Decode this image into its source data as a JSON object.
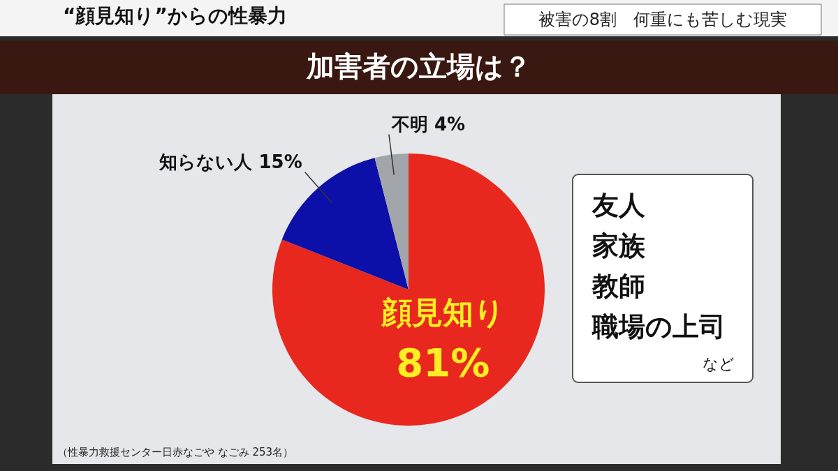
{
  "chart_data": {
    "type": "pie",
    "title": "加害者の立場は？",
    "subtitle": "“顔見知り”からの性暴力",
    "categories": [
      "顔見知り",
      "知らない人",
      "不明"
    ],
    "values": [
      81,
      15,
      4
    ],
    "value_labels": [
      "81%",
      "15%",
      "4%"
    ],
    "colors": [
      "#e8281e",
      "#0c10a8",
      "#a2a6ab"
    ],
    "annotations": [
      "被害の8割　何重にも苦しむ現実",
      "友人",
      "家族",
      "教師",
      "職場の上司",
      "など",
      "（性暴力救援センター日赤なごや なごみ 253名）"
    ]
  }
}
